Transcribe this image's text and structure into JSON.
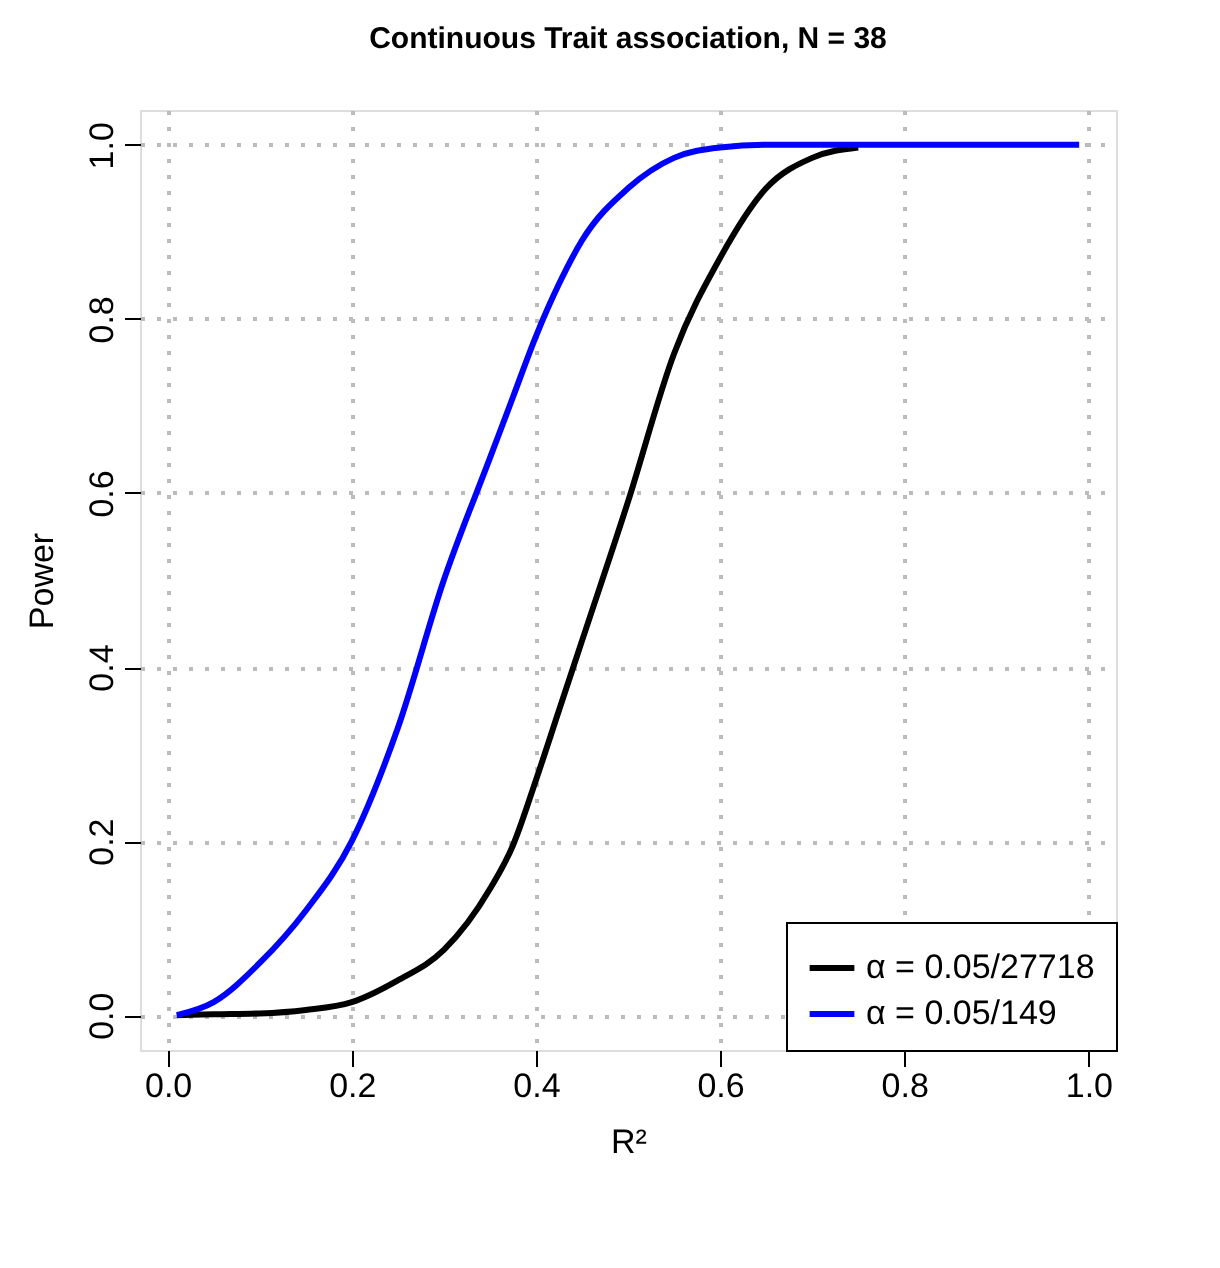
{
  "chart_data": {
    "type": "line",
    "title": "Continuous Trait association, N = 38",
    "xlabel": "R²",
    "ylabel": "Power",
    "x": [
      0.01,
      0.05,
      0.1,
      0.15,
      0.2,
      0.25,
      0.3,
      0.35,
      0.375,
      0.4,
      0.425,
      0.45,
      0.5,
      0.55,
      0.6,
      0.65,
      0.7,
      0.75,
      0.8,
      0.9,
      0.99
    ],
    "series": [
      {
        "name": "α = 0.05/27718",
        "color": "#000000",
        "values": [
          0,
          0.001,
          0.002,
          0.006,
          0.015,
          0.04,
          0.075,
          0.145,
          0.195,
          0.27,
          0.35,
          0.43,
          0.59,
          0.76,
          0.87,
          0.95,
          0.985,
          0.997,
          null,
          null,
          null
        ]
      },
      {
        "name": "α = 0.05/149",
        "color": "#0000ff",
        "values": [
          0,
          0.015,
          0.06,
          0.12,
          0.2,
          0.33,
          0.5,
          0.64,
          0.71,
          0.78,
          0.84,
          0.89,
          0.95,
          0.985,
          0.997,
          1,
          1,
          1,
          1,
          1,
          1
        ]
      }
    ],
    "xlim": [
      -0.03,
      1.03
    ],
    "ylim": [
      -0.04,
      1.04
    ],
    "xticks": [
      {
        "value": 0,
        "label": "0.0"
      },
      0.2,
      0.4,
      0.6,
      0.8,
      {
        "value": 1,
        "label": "1.0"
      }
    ],
    "yticks": [
      {
        "value": 0,
        "label": "0.0"
      },
      0.2,
      0.4,
      0.6,
      0.8,
      {
        "value": 1,
        "label": "1.0"
      }
    ],
    "grid": true,
    "legend": "bottom right",
    "line_style": "solid",
    "marker": "none"
  }
}
